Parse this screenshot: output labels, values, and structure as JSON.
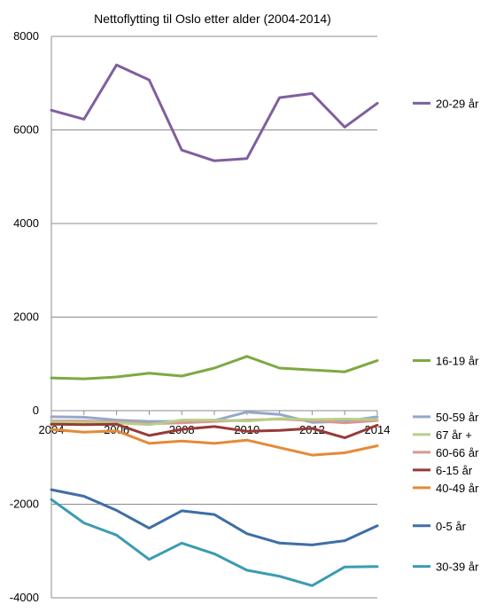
{
  "chart_data": {
    "type": "line",
    "title": "Nettoflytting til Oslo etter alder (2004-2014)",
    "xlabel": "",
    "ylabel": "",
    "x": [
      2004,
      2005,
      2006,
      2007,
      2008,
      2009,
      2010,
      2011,
      2012,
      2013,
      2014
    ],
    "xticks": [
      "2004",
      "2006",
      "2008",
      "2010",
      "2012",
      "2014"
    ],
    "ylim": [
      -4000,
      8000
    ],
    "yticks": [
      "-4000",
      "-2000",
      "0",
      "2000",
      "4000",
      "6000",
      "8000"
    ],
    "grid": "horizontal",
    "legend_position": "right",
    "series": [
      {
        "name": "20-29 år",
        "color": "#7f5f9f",
        "values": [
          6420,
          6230,
          7390,
          7070,
          5570,
          5340,
          5390,
          6690,
          6780,
          6060,
          6570
        ]
      },
      {
        "name": "16-19 år",
        "color": "#7fa843",
        "values": [
          700,
          680,
          720,
          800,
          740,
          910,
          1160,
          910,
          870,
          830,
          1070
        ]
      },
      {
        "name": "50-59 år",
        "color": "#94a8cb",
        "values": [
          -130,
          -140,
          -200,
          -230,
          -230,
          -210,
          -30,
          -80,
          -250,
          -230,
          -130
        ]
      },
      {
        "name": "60-66 år",
        "color": "#d99795",
        "values": [
          -220,
          -220,
          -240,
          -280,
          -260,
          -230,
          -200,
          -180,
          -210,
          -260,
          -210
        ]
      },
      {
        "name": "67 år +",
        "color": "#b6cf88",
        "values": [
          -240,
          -250,
          -260,
          -300,
          -200,
          -200,
          -220,
          -170,
          -190,
          -180,
          -190
        ]
      },
      {
        "name": "6-15 år",
        "color": "#983a36",
        "values": [
          -290,
          -300,
          -290,
          -530,
          -400,
          -340,
          -440,
          -420,
          -380,
          -580,
          -310
        ]
      },
      {
        "name": "40-49 år",
        "color": "#e48a38",
        "values": [
          -400,
          -460,
          -430,
          -700,
          -650,
          -700,
          -630,
          -790,
          -950,
          -900,
          -750
        ]
      },
      {
        "name": "0-5 år",
        "color": "#3e6ea6",
        "values": [
          -1690,
          -1830,
          -2130,
          -2510,
          -2140,
          -2220,
          -2630,
          -2830,
          -2870,
          -2780,
          -2460
        ]
      },
      {
        "name": "30-39 år",
        "color": "#3a9bb2",
        "values": [
          -1900,
          -2400,
          -2660,
          -3180,
          -2830,
          -3060,
          -3410,
          -3540,
          -3740,
          -3340,
          -3330
        ]
      }
    ]
  }
}
